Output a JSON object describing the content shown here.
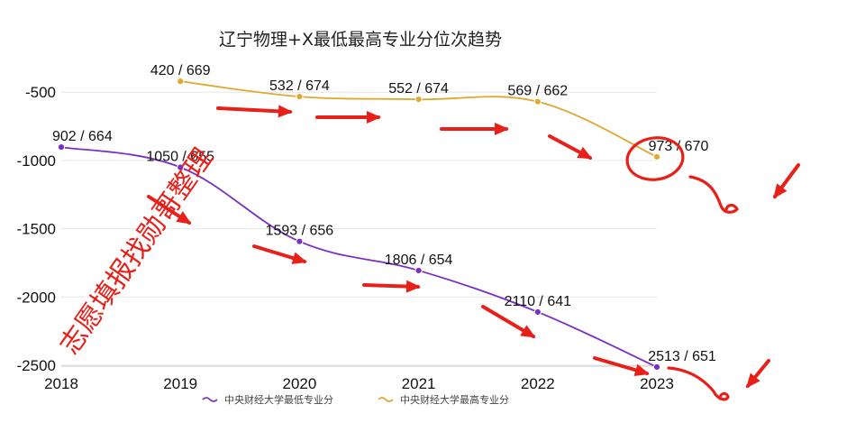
{
  "chart_data": {
    "type": "line",
    "title": "辽宁物理+X最低最高专业分位次趋势",
    "x": [
      2018,
      2019,
      2020,
      2021,
      2022,
      2023
    ],
    "ylim": [
      -2500,
      -320
    ],
    "yticks": [
      -500,
      -1000,
      -1500,
      -2000,
      -2500
    ],
    "grid": true,
    "legend_position": "bottom",
    "series": [
      {
        "name": "中央财经大学最低专业分",
        "color": "#7b2fc2",
        "values": [
          -902,
          -1050,
          -1593,
          -1806,
          -2110,
          -2513
        ],
        "labels": [
          "902 / 664",
          "1050 / 655",
          "1593 / 656",
          "1806 / 654",
          "2110 / 641",
          "2513 / 651"
        ]
      },
      {
        "name": "中央财经大学最高专业分",
        "color": "#e0a82e",
        "values": [
          null,
          -420,
          -532,
          -552,
          -569,
          -973
        ],
        "labels": [
          "",
          "420 / 669",
          "532 / 674",
          "552 / 674",
          "569 / 662",
          "973 / 670"
        ]
      }
    ]
  },
  "watermark": "志愿填报找勋哥整理",
  "annotation_color": "#e8201a"
}
